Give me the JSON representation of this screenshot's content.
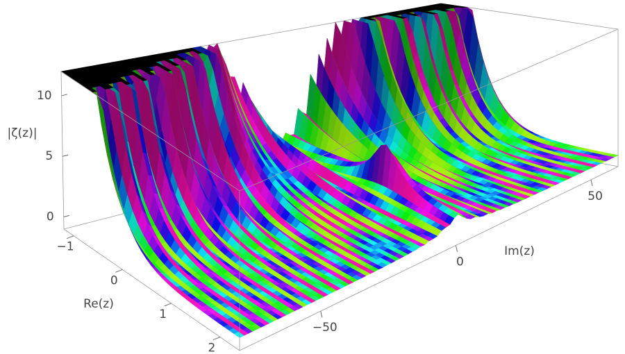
{
  "chart_data": {
    "type": "surface3d",
    "xlabel": "Re(z)",
    "ylabel": "Im(z)",
    "zlabel": "|ζ(z)|",
    "xlim": [
      -1.2,
      2.4
    ],
    "xticks": [
      {
        "value": -1,
        "label": "−1"
      },
      0,
      1,
      2
    ],
    "ylim": [
      -80,
      60
    ],
    "yticks": [
      {
        "value": -50,
        "label": "−50"
      },
      0,
      50
    ],
    "zlim": [
      -1,
      12
    ],
    "zticks": [
      0,
      5,
      10
    ]
  }
}
